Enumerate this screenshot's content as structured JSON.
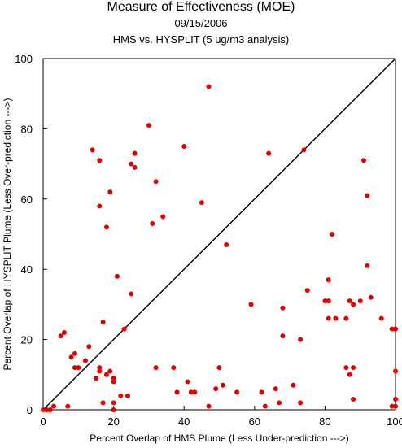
{
  "chart_data": {
    "type": "scatter",
    "title": "Measure of Effectiveness (MOE)",
    "date": "09/15/2006",
    "subtitle": "HMS vs. HYSPLIT  (5 ug/m3 analysis)",
    "xlabel": "Percent Overlap of HMS Plume (Less Under-prediction --->)",
    "ylabel": "Percent Overlap of HYSPLIT Plume (Less Over-prediction --->)",
    "xlim": [
      0,
      100
    ],
    "ylim": [
      0,
      100
    ],
    "xticks": [
      "0",
      "20",
      "40",
      "60",
      "80",
      "100"
    ],
    "yticks": [
      "0",
      "20",
      "40",
      "60",
      "80",
      "100"
    ],
    "reference_line": "y = x (diagonal)",
    "grid": false,
    "point_color": "#e00000",
    "points": [
      [
        0,
        0
      ],
      [
        1,
        0
      ],
      [
        2,
        0
      ],
      [
        3,
        1
      ],
      [
        7,
        1
      ],
      [
        5,
        21
      ],
      [
        6,
        22
      ],
      [
        8,
        15
      ],
      [
        9,
        12
      ],
      [
        9,
        16
      ],
      [
        10,
        12
      ],
      [
        12,
        14
      ],
      [
        13,
        18
      ],
      [
        14,
        74
      ],
      [
        15,
        9
      ],
      [
        16,
        11
      ],
      [
        16,
        12
      ],
      [
        16,
        58
      ],
      [
        16,
        71
      ],
      [
        17,
        25
      ],
      [
        17,
        2
      ],
      [
        18,
        52
      ],
      [
        18,
        10
      ],
      [
        19,
        62
      ],
      [
        19,
        11
      ],
      [
        20,
        9
      ],
      [
        20,
        8
      ],
      [
        20,
        2
      ],
      [
        20,
        0
      ],
      [
        21,
        38
      ],
      [
        22,
        4
      ],
      [
        23,
        23
      ],
      [
        24,
        4
      ],
      [
        25,
        33
      ],
      [
        25,
        70
      ],
      [
        26,
        69
      ],
      [
        26,
        73
      ],
      [
        30,
        81
      ],
      [
        31,
        53
      ],
      [
        32,
        65
      ],
      [
        32,
        12
      ],
      [
        34,
        55
      ],
      [
        37,
        12
      ],
      [
        38,
        5
      ],
      [
        40,
        75
      ],
      [
        41,
        8
      ],
      [
        42,
        5
      ],
      [
        43,
        5
      ],
      [
        45,
        59
      ],
      [
        47,
        92
      ],
      [
        47,
        1
      ],
      [
        49,
        6
      ],
      [
        50,
        12
      ],
      [
        51,
        7
      ],
      [
        52,
        47
      ],
      [
        55,
        5
      ],
      [
        59,
        30
      ],
      [
        62,
        5
      ],
      [
        63,
        1
      ],
      [
        64,
        73
      ],
      [
        66,
        6
      ],
      [
        67,
        2
      ],
      [
        68,
        29
      ],
      [
        68,
        21
      ],
      [
        71,
        7
      ],
      [
        73,
        20
      ],
      [
        73,
        2
      ],
      [
        74,
        74
      ],
      [
        75,
        34
      ],
      [
        80,
        31
      ],
      [
        81,
        37
      ],
      [
        81,
        31
      ],
      [
        81,
        26
      ],
      [
        82,
        50
      ],
      [
        83,
        26
      ],
      [
        86,
        12
      ],
      [
        86,
        26
      ],
      [
        87,
        31
      ],
      [
        87,
        10
      ],
      [
        88,
        3
      ],
      [
        88,
        30
      ],
      [
        88,
        12
      ],
      [
        90,
        31
      ],
      [
        91,
        71
      ],
      [
        92,
        41
      ],
      [
        92,
        61
      ],
      [
        93,
        32
      ],
      [
        96,
        26
      ],
      [
        99,
        23
      ],
      [
        99,
        1
      ],
      [
        100,
        23
      ],
      [
        100,
        11
      ],
      [
        100,
        3
      ],
      [
        100,
        1
      ]
    ]
  }
}
